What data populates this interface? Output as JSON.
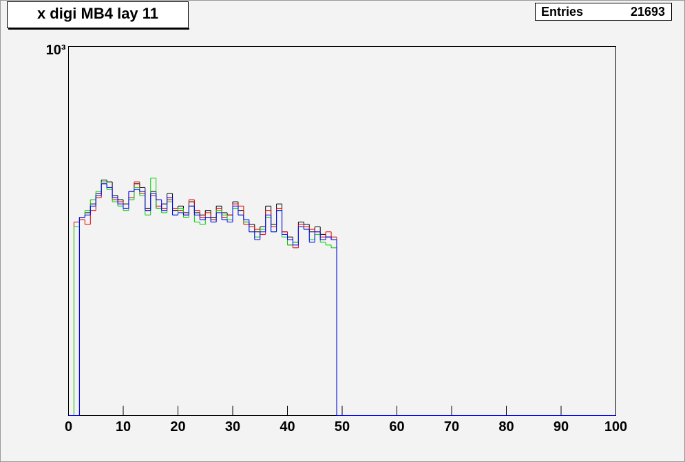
{
  "chart_data": {
    "type": "histogram",
    "title": "x digi MB4 lay 11",
    "stats": {
      "label": "Entries",
      "value": 21693
    },
    "bins": [
      0,
      1,
      2,
      3,
      4,
      5,
      6,
      7,
      8,
      9,
      10,
      11,
      12,
      13,
      14,
      15,
      16,
      17,
      18,
      19,
      20,
      21,
      22,
      23,
      24,
      25,
      26,
      27,
      28,
      29,
      30,
      31,
      32,
      33,
      34,
      35,
      36,
      37,
      38,
      39,
      40,
      41,
      42,
      43,
      44,
      45,
      46,
      47,
      48,
      49,
      50,
      51,
      52,
      53,
      54,
      55,
      56,
      57,
      58,
      59,
      60,
      61,
      62,
      63,
      64,
      65,
      66,
      67,
      68,
      69,
      70,
      71,
      72,
      73,
      74,
      75,
      76,
      77,
      78,
      79,
      80,
      81,
      82,
      83,
      84,
      85,
      86,
      87,
      88,
      89,
      90,
      91,
      92,
      93,
      94,
      95,
      96,
      97,
      98,
      99,
      100
    ],
    "series": [
      {
        "name": "black",
        "color": "#000000",
        "values": [
          0,
          0,
          360,
          370,
          390,
          415,
          450,
          445,
          410,
          400,
          390,
          420,
          440,
          430,
          380,
          420,
          380,
          390,
          415,
          375,
          385,
          370,
          395,
          370,
          365,
          375,
          360,
          385,
          370,
          365,
          395,
          375,
          350,
          345,
          330,
          340,
          385,
          345,
          390,
          330,
          320,
          310,
          350,
          345,
          330,
          340,
          325,
          320,
          315,
          0,
          0,
          0,
          0,
          0,
          0,
          0,
          0,
          0,
          0,
          0,
          0,
          0,
          0,
          0,
          0,
          0,
          0,
          0,
          0,
          0,
          0,
          0,
          0,
          0,
          0,
          0,
          0,
          0,
          0,
          0,
          0,
          0,
          0,
          0,
          0,
          0,
          0,
          0,
          0,
          0,
          0,
          0,
          0,
          0,
          0,
          0,
          0,
          0,
          0,
          0
        ]
      },
      {
        "name": "red",
        "color": "#dd0000",
        "values": [
          0,
          350,
          355,
          345,
          375,
          405,
          440,
          430,
          400,
          395,
          380,
          405,
          445,
          415,
          375,
          410,
          385,
          380,
          400,
          380,
          375,
          365,
          400,
          375,
          360,
          370,
          355,
          380,
          360,
          365,
          390,
          385,
          345,
          340,
          335,
          325,
          375,
          340,
          380,
          330,
          305,
          300,
          345,
          340,
          335,
          330,
          320,
          330,
          320,
          0,
          0,
          0,
          0,
          0,
          0,
          0,
          0,
          0,
          0,
          0,
          0,
          0,
          0,
          0,
          0,
          0,
          0,
          0,
          0,
          0,
          0,
          0,
          0,
          0,
          0,
          0,
          0,
          0,
          0,
          0,
          0,
          0,
          0,
          0,
          0,
          0,
          0,
          0,
          0,
          0,
          0,
          0,
          0,
          0,
          0,
          0,
          0,
          0,
          0,
          0
        ]
      },
      {
        "name": "green",
        "color": "#00cc00",
        "values": [
          0,
          340,
          360,
          375,
          400,
          420,
          445,
          425,
          395,
          385,
          375,
          400,
          430,
          410,
          365,
          455,
          380,
          370,
          395,
          365,
          380,
          360,
          385,
          350,
          345,
          360,
          350,
          375,
          365,
          355,
          380,
          365,
          350,
          330,
          320,
          335,
          360,
          330,
          375,
          320,
          305,
          310,
          340,
          335,
          315,
          325,
          310,
          305,
          300,
          0,
          0,
          0,
          0,
          0,
          0,
          0,
          0,
          0,
          0,
          0,
          0,
          0,
          0,
          0,
          0,
          0,
          0,
          0,
          0,
          0,
          0,
          0,
          0,
          0,
          0,
          0,
          0,
          0,
          0,
          0,
          0,
          0,
          0,
          0,
          0,
          0,
          0,
          0,
          0,
          0,
          0,
          0,
          0,
          0,
          0,
          0,
          0,
          0,
          0,
          0
        ]
      },
      {
        "name": "blue",
        "color": "#0000ff",
        "values": [
          0,
          0,
          360,
          365,
          385,
          410,
          440,
          430,
          405,
          390,
          380,
          420,
          425,
          420,
          375,
          415,
          400,
          375,
          405,
          365,
          370,
          365,
          385,
          365,
          355,
          360,
          350,
          370,
          355,
          350,
          385,
          365,
          355,
          330,
          315,
          330,
          365,
          330,
          375,
          325,
          315,
          305,
          340,
          335,
          310,
          330,
          315,
          320,
          315,
          0,
          0,
          0,
          0,
          0,
          0,
          0,
          0,
          0,
          0,
          0,
          0,
          0,
          0,
          0,
          0,
          0,
          0,
          0,
          0,
          0,
          0,
          0,
          0,
          0,
          0,
          0,
          0,
          0,
          0,
          0,
          0,
          0,
          0,
          0,
          0,
          0,
          0,
          0,
          0,
          0,
          0,
          0,
          0,
          0,
          0,
          0,
          0,
          0,
          0,
          0
        ]
      }
    ],
    "xlim": [
      0,
      100
    ],
    "xticks": [
      0,
      10,
      20,
      30,
      40,
      50,
      60,
      70,
      80,
      90,
      100
    ],
    "ylim": [
      110,
      1000
    ],
    "yticks": [
      {
        "value": 1000,
        "label": "10³"
      }
    ],
    "log_y": true
  }
}
